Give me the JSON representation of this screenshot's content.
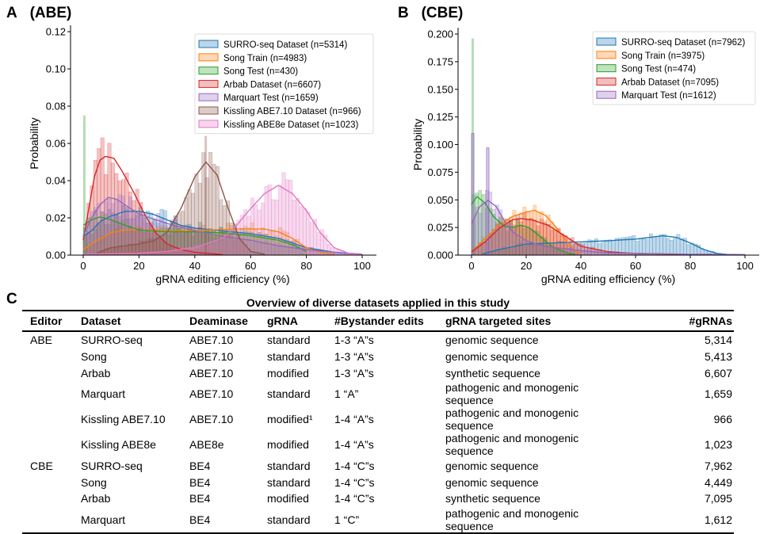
{
  "panels": {
    "a_label": "A",
    "a_title": "(ABE)",
    "b_label": "B",
    "b_title": "(CBE)",
    "c_label": "C"
  },
  "chart_data": [
    {
      "type": "histogram+kde",
      "title": "(ABE)",
      "xlabel": "gRNA editing efficiency (%)",
      "ylabel": "Probability",
      "xlim": [
        0,
        100
      ],
      "ylim": [
        0,
        0.12
      ],
      "xticks": [
        0,
        20,
        40,
        60,
        80,
        100
      ],
      "yticks": [
        "0.00",
        "0.02",
        "0.04",
        "0.06",
        "0.08",
        "0.10",
        "0.12"
      ],
      "legend_position": "top-right",
      "series": [
        {
          "name": "SURRO-seq Dataset (n=5314)",
          "color": "#1f77b4",
          "kde": [
            [
              0,
              0.01
            ],
            [
              3,
              0.013
            ],
            [
              6,
              0.018
            ],
            [
              10,
              0.021
            ],
            [
              15,
              0.0235
            ],
            [
              20,
              0.0235
            ],
            [
              25,
              0.022
            ],
            [
              30,
              0.019
            ],
            [
              35,
              0.016
            ],
            [
              40,
              0.0145
            ],
            [
              50,
              0.013
            ],
            [
              60,
              0.0115
            ],
            [
              70,
              0.009
            ],
            [
              80,
              0.004
            ],
            [
              90,
              0.0015
            ],
            [
              100,
              0.0005
            ]
          ]
        },
        {
          "name": "Song Train (n=4983)",
          "color": "#ff7f0e",
          "kde": [
            [
              0,
              0.003
            ],
            [
              5,
              0.008
            ],
            [
              10,
              0.012
            ],
            [
              15,
              0.0135
            ],
            [
              25,
              0.0135
            ],
            [
              35,
              0.013
            ],
            [
              45,
              0.0135
            ],
            [
              55,
              0.014
            ],
            [
              65,
              0.014
            ],
            [
              70,
              0.0125
            ],
            [
              75,
              0.009
            ],
            [
              80,
              0.004
            ],
            [
              85,
              0.0015
            ],
            [
              90,
              0.0005
            ]
          ]
        },
        {
          "name": "Song Test (n=430)",
          "color": "#2ca02c",
          "kde": [
            [
              0,
              0.016
            ],
            [
              3,
              0.019
            ],
            [
              6,
              0.0205
            ],
            [
              10,
              0.019
            ],
            [
              15,
              0.016
            ],
            [
              20,
              0.0135
            ],
            [
              30,
              0.0125
            ],
            [
              40,
              0.0125
            ],
            [
              50,
              0.012
            ],
            [
              60,
              0.0105
            ],
            [
              70,
              0.008
            ],
            [
              76,
              0.005
            ],
            [
              80,
              0.002
            ]
          ]
        },
        {
          "name": "Arbab Dataset (n=6607)",
          "color": "#d62728",
          "kde": [
            [
              0,
              0.008
            ],
            [
              2,
              0.025
            ],
            [
              4,
              0.042
            ],
            [
              6,
              0.051
            ],
            [
              8,
              0.053
            ],
            [
              11,
              0.052
            ],
            [
              14,
              0.045
            ],
            [
              18,
              0.034
            ],
            [
              22,
              0.022
            ],
            [
              26,
              0.012
            ],
            [
              30,
              0.006
            ],
            [
              35,
              0.003
            ],
            [
              40,
              0.0015
            ],
            [
              50,
              0.0003
            ]
          ]
        },
        {
          "name": "Marquart Test (n=1659)",
          "color": "#9467bd",
          "kde": [
            [
              0,
              0.01
            ],
            [
              3,
              0.02
            ],
            [
              6,
              0.027
            ],
            [
              9,
              0.031
            ],
            [
              12,
              0.03
            ],
            [
              16,
              0.026
            ],
            [
              20,
              0.022
            ],
            [
              30,
              0.017
            ],
            [
              40,
              0.013
            ],
            [
              50,
              0.01
            ],
            [
              60,
              0.008
            ],
            [
              70,
              0.005
            ],
            [
              80,
              0.003
            ],
            [
              90,
              0.0015
            ],
            [
              100,
              0.0005
            ]
          ]
        },
        {
          "name": "Kissling ABE7.10 Dataset (n=966)",
          "color": "#8c564b",
          "kde": [
            [
              5,
              0.001
            ],
            [
              10,
              0.004
            ],
            [
              15,
              0.005
            ],
            [
              20,
              0.006
            ],
            [
              25,
              0.0075
            ],
            [
              30,
              0.012
            ],
            [
              35,
              0.025
            ],
            [
              40,
              0.042
            ],
            [
              44,
              0.05
            ],
            [
              48,
              0.043
            ],
            [
              52,
              0.025
            ],
            [
              56,
              0.009
            ],
            [
              60,
              0.002
            ],
            [
              65,
              0.0005
            ]
          ]
        },
        {
          "name": "Kissling ABE8e Dataset (n=1023)",
          "color": "#e377c2",
          "kde": [
            [
              0,
              0.0005
            ],
            [
              20,
              0.001
            ],
            [
              30,
              0.002
            ],
            [
              40,
              0.004
            ],
            [
              50,
              0.009
            ],
            [
              55,
              0.016
            ],
            [
              60,
              0.025
            ],
            [
              65,
              0.033
            ],
            [
              70,
              0.0375
            ],
            [
              75,
              0.033
            ],
            [
              80,
              0.024
            ],
            [
              85,
              0.012
            ],
            [
              90,
              0.004
            ],
            [
              95,
              0.001
            ],
            [
              100,
              0.0003
            ]
          ]
        }
      ],
      "annotations": {
        "song_test_peak_at_0": 0.075,
        "kissling_abe710_peak_bin": 0.064,
        "kissling_abe8e_peak_bin": 0.047
      }
    },
    {
      "type": "histogram+kde",
      "title": "(CBE)",
      "xlabel": "gRNA editing efficiency (%)",
      "ylabel": "Probability",
      "xlim": [
        0,
        100
      ],
      "ylim": [
        0,
        0.2
      ],
      "xticks": [
        0,
        20,
        40,
        60,
        80,
        100
      ],
      "yticks": [
        "0.000",
        "0.025",
        "0.050",
        "0.075",
        "0.100",
        "0.125",
        "0.150",
        "0.175",
        "0.200"
      ],
      "legend_position": "top-right",
      "series": [
        {
          "name": "SURRO-seq Dataset (n=7962)",
          "color": "#1f77b4",
          "kde": [
            [
              4,
              0.001
            ],
            [
              10,
              0.005
            ],
            [
              20,
              0.01
            ],
            [
              30,
              0.011
            ],
            [
              40,
              0.012
            ],
            [
              50,
              0.013
            ],
            [
              60,
              0.0145
            ],
            [
              70,
              0.0175
            ],
            [
              75,
              0.016
            ],
            [
              80,
              0.011
            ],
            [
              85,
              0.005
            ],
            [
              90,
              0.0015
            ],
            [
              95,
              0.0003
            ]
          ]
        },
        {
          "name": "Song Train (n=3975)",
          "color": "#ff7f0e",
          "kde": [
            [
              0,
              0.003
            ],
            [
              5,
              0.015
            ],
            [
              10,
              0.027
            ],
            [
              15,
              0.035
            ],
            [
              20,
              0.039
            ],
            [
              23,
              0.0405
            ],
            [
              27,
              0.036
            ],
            [
              30,
              0.028
            ],
            [
              35,
              0.012
            ],
            [
              38,
              0.004
            ],
            [
              40,
              0.001
            ]
          ]
        },
        {
          "name": "Song Test (n=474)",
          "color": "#2ca02c",
          "kde": [
            [
              0,
              0.046
            ],
            [
              2,
              0.053
            ],
            [
              5,
              0.047
            ],
            [
              8,
              0.035
            ],
            [
              12,
              0.026
            ],
            [
              15,
              0.025
            ],
            [
              18,
              0.027
            ],
            [
              21,
              0.025
            ],
            [
              25,
              0.017
            ],
            [
              30,
              0.007
            ],
            [
              35,
              0.002
            ],
            [
              38,
              0.0005
            ]
          ]
        },
        {
          "name": "Arbab Dataset (n=7095)",
          "color": "#d62728",
          "kde": [
            [
              0,
              0.003
            ],
            [
              5,
              0.012
            ],
            [
              10,
              0.024
            ],
            [
              15,
              0.032
            ],
            [
              18,
              0.033
            ],
            [
              22,
              0.032
            ],
            [
              28,
              0.027
            ],
            [
              35,
              0.016
            ],
            [
              40,
              0.008
            ],
            [
              50,
              0.003
            ],
            [
              60,
              0.0015
            ],
            [
              70,
              0.001
            ],
            [
              80,
              0.0005
            ]
          ]
        },
        {
          "name": "Marquart Test (n=1612)",
          "color": "#9467bd",
          "kde": [
            [
              0,
              0.028
            ],
            [
              3,
              0.044
            ],
            [
              6,
              0.0495
            ],
            [
              9,
              0.044
            ],
            [
              12,
              0.031
            ],
            [
              15,
              0.021
            ],
            [
              20,
              0.013
            ],
            [
              25,
              0.009
            ],
            [
              30,
              0.007
            ],
            [
              40,
              0.004
            ],
            [
              50,
              0.002
            ],
            [
              60,
              0.0015
            ],
            [
              80,
              0.0008
            ],
            [
              100,
              0.0005
            ]
          ]
        }
      ],
      "annotations": {
        "song_test_peak_at_0": 0.196,
        "marquart_peak_at_0": 0.11,
        "marquart_second_peak_bin": 0.097
      }
    }
  ],
  "table": {
    "title": "Overview of diverse datasets applied in this study",
    "headers": [
      "Editor",
      "Dataset",
      "Deaminase",
      "gRNA",
      "#Bystander edits",
      "gRNA targeted sites",
      "#gRNAs"
    ],
    "rows": [
      [
        "ABE",
        "SURRO-seq",
        "ABE7.10",
        "standard",
        "1-3 “A”s",
        "genomic sequence",
        "5,314"
      ],
      [
        "",
        "Song",
        "ABE7.10",
        "standard",
        "1-3 “A”s",
        "genomic sequence",
        "5,413"
      ],
      [
        "",
        "Arbab",
        "ABE7.10",
        "modified",
        "1-3 “A”s",
        "synthetic sequence",
        "6,607"
      ],
      [
        "",
        "Marquart",
        "ABE7.10",
        "standard",
        "1 “A”",
        "pathogenic and monogenic sequence",
        "1,659"
      ],
      [
        "",
        "Kissling ABE7.10",
        "ABE7.10",
        "modified¹",
        "1-4 “A”s",
        "pathogenic and monogenic sequence",
        "966"
      ],
      [
        "",
        "Kissling ABE8e",
        "ABE8e",
        "modified",
        "1-4 “A”s",
        "pathogenic and monogenic sequence",
        "1,023"
      ],
      [
        "CBE",
        "SURRO-seq",
        "BE4",
        "standard",
        "1-4 “C”s",
        "genomic sequence",
        "7,962"
      ],
      [
        "",
        "Song",
        "BE4",
        "standard",
        "1-4 “C”s",
        "genomic sequence",
        "4,449"
      ],
      [
        "",
        "Arbab",
        "BE4",
        "modified",
        "1-4 “C”s",
        "synthetic sequence",
        "7,095"
      ],
      [
        "",
        "Marquart",
        "BE4",
        "standard",
        "1 “C”",
        "pathogenic and monogenic sequence",
        "1,612"
      ]
    ]
  }
}
